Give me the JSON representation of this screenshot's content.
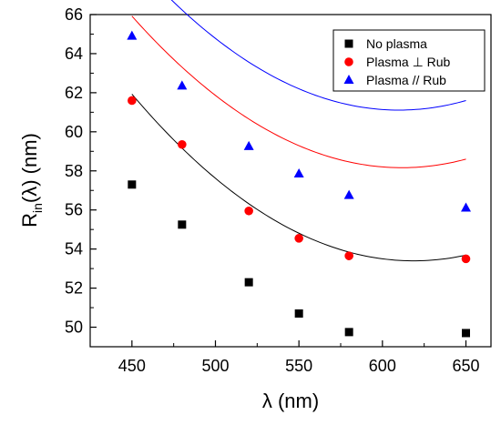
{
  "chart_data": {
    "type": "scatter",
    "title": "",
    "xlabel": "λ (nm)",
    "ylabel_main": "R",
    "ylabel_sub": "in",
    "ylabel_rest": "(λ) (nm)",
    "xlim": [
      425,
      665
    ],
    "ylim": [
      49,
      66
    ],
    "xticks": [
      450,
      500,
      550,
      600,
      650
    ],
    "yticks": [
      50,
      52,
      54,
      56,
      58,
      60,
      62,
      64,
      66
    ],
    "legend_position": "top-right",
    "series": [
      {
        "name": "No plasma",
        "marker": "square",
        "color": "#000000",
        "x": [
          450,
          480,
          520,
          550,
          580,
          650
        ],
        "y": [
          57.3,
          55.25,
          52.3,
          50.7,
          49.75,
          49.7
        ],
        "fit": [
          61.93,
          -0.1012,
          0.0003
        ]
      },
      {
        "name": "Plasma ⊥ Rub",
        "marker": "circle",
        "color": "#ff0000",
        "x": [
          450,
          480,
          520,
          550,
          580,
          650
        ],
        "y": [
          61.6,
          59.35,
          55.95,
          54.55,
          53.65,
          53.5
        ],
        "fit": [
          65.92,
          -0.096,
          0.000297
        ]
      },
      {
        "name": "Plasma // Rub",
        "marker": "triangle",
        "color": "#0000ff",
        "x": [
          450,
          480,
          520,
          550,
          580,
          650
        ],
        "y": [
          64.9,
          62.35,
          59.25,
          57.85,
          56.75,
          56.1
        ],
        "fit": [
          68.88,
          -0.0972,
          0.000304
        ]
      }
    ]
  }
}
